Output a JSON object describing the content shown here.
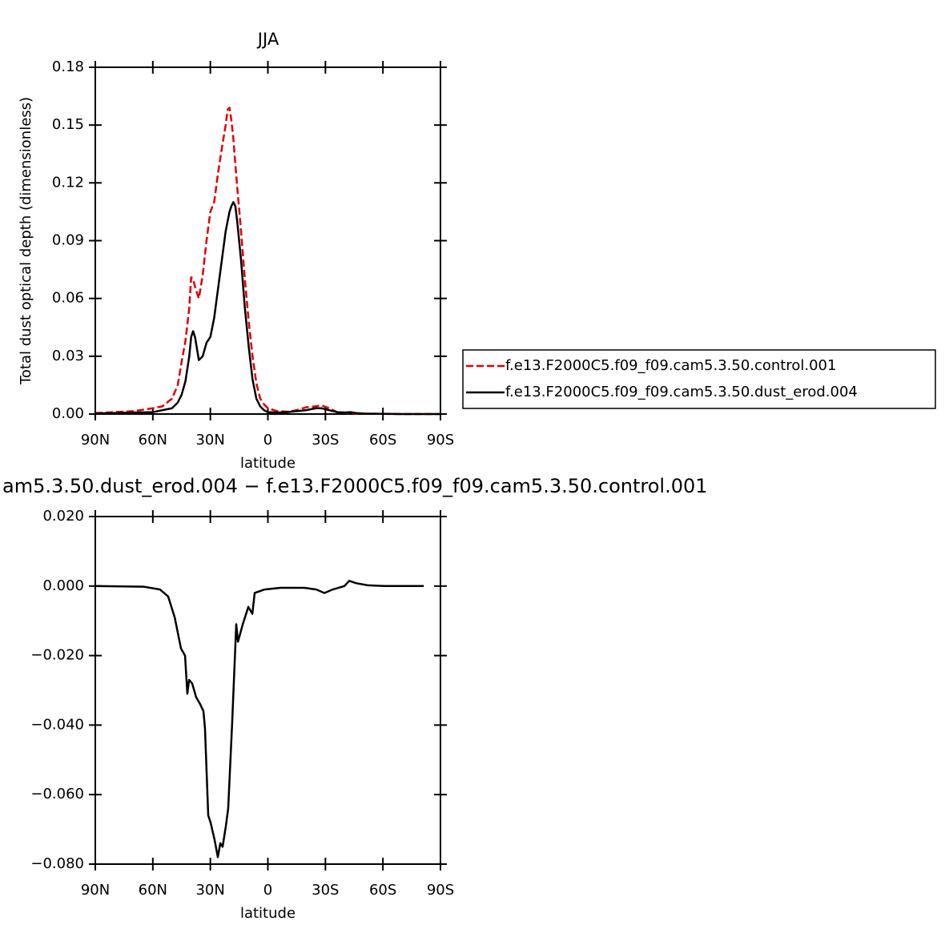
{
  "chart_data": [
    {
      "type": "line",
      "title": "JJA",
      "xlabel": "latitude",
      "ylabel": "Total dust optical depth (dimensionless)",
      "x": [
        90,
        80,
        70,
        60,
        55,
        50,
        47,
        45,
        43,
        41,
        40,
        39,
        38,
        36,
        34,
        32,
        30,
        28,
        26,
        24,
        22,
        21,
        20,
        19,
        18,
        17,
        16,
        14,
        12,
        10,
        8,
        6,
        4,
        2,
        0,
        -5,
        -10,
        -15,
        -20,
        -25,
        -28,
        -32,
        -36,
        -40,
        -43,
        -46,
        -50,
        -60,
        -70,
        -80,
        -90
      ],
      "series": [
        {
          "name": "f.e13.F2000C5.f09_f09.cam5.3.50.control.001",
          "color": "#e00000",
          "dash": true,
          "values": [
            0.0005,
            0.001,
            0.0015,
            0.003,
            0.004,
            0.008,
            0.015,
            0.027,
            0.038,
            0.055,
            0.071,
            0.07,
            0.066,
            0.06,
            0.072,
            0.09,
            0.105,
            0.11,
            0.125,
            0.138,
            0.15,
            0.158,
            0.159,
            0.152,
            0.143,
            0.13,
            0.118,
            0.095,
            0.07,
            0.048,
            0.03,
            0.016,
            0.008,
            0.005,
            0.003,
            0.0015,
            0.0012,
            0.002,
            0.0035,
            0.004,
            0.0045,
            0.003,
            0.001,
            0.0008,
            0.0005,
            0.0003,
            0.0002,
            0.0001,
            0,
            0,
            0
          ]
        },
        {
          "name": "f.e13.F2000C5.f09_f09.cam5.3.50.dust_erod.004",
          "color": "#000000",
          "dash": false,
          "values": [
            0.0003,
            0.0005,
            0.0008,
            0.001,
            0.002,
            0.003,
            0.006,
            0.01,
            0.017,
            0.03,
            0.04,
            0.043,
            0.04,
            0.028,
            0.03,
            0.037,
            0.04,
            0.05,
            0.065,
            0.08,
            0.095,
            0.1,
            0.105,
            0.108,
            0.11,
            0.108,
            0.1,
            0.08,
            0.055,
            0.035,
            0.018,
            0.008,
            0.004,
            0.002,
            0.001,
            0.0008,
            0.001,
            0.0015,
            0.002,
            0.003,
            0.003,
            0.002,
            0.001,
            0.0008,
            0.001,
            0.0005,
            0.0002,
            0.0001,
            0,
            0,
            0
          ]
        }
      ],
      "xlim": [
        90,
        -90
      ],
      "xticks": [
        {
          "value": 90,
          "label": "90N"
        },
        {
          "value": 60,
          "label": "60N"
        },
        {
          "value": 30,
          "label": "30N"
        },
        0,
        {
          "value": -30,
          "label": "30S"
        },
        {
          "value": -60,
          "label": "60S"
        },
        {
          "value": -90,
          "label": "90S"
        }
      ],
      "ylim": [
        0,
        0.18
      ],
      "yticks": [
        {
          "value": 0,
          "label": "0.00"
        },
        0.03,
        0.06,
        0.09,
        0.12,
        0.15,
        0.18
      ],
      "legend": "right"
    },
    {
      "type": "line",
      "title": "am5.3.50.dust_erod.004 − f.e13.F2000C5.f09_f09.cam5.3.50.control.001",
      "xlabel": "latitude",
      "x": [
        90,
        64.5,
        56.2,
        52,
        48.6,
        45.3,
        43.2,
        42,
        41.1,
        39.5,
        37.4,
        35.3,
        33.6,
        32.8,
        31.1,
        29.9,
        27.8,
        26.1,
        24.8,
        23.6,
        21.9,
        20.7,
        18.6,
        16.5,
        15.6,
        13.1,
        10.2,
        8.1,
        6.9,
        1.9,
        -6.5,
        -19,
        -25.3,
        -29.5,
        -33.7,
        -39.9,
        -42.4,
        -46.2,
        -52.4,
        -60.8,
        -81.3
      ],
      "series": [
        {
          "color": "#000000",
          "dash": false,
          "values": [
            0,
            -0.0002,
            -0.001,
            -0.003,
            -0.009,
            -0.018,
            -0.02,
            -0.031,
            -0.027,
            -0.028,
            -0.032,
            -0.034,
            -0.036,
            -0.041,
            -0.066,
            -0.068,
            -0.073,
            -0.078,
            -0.074,
            -0.075,
            -0.069,
            -0.064,
            -0.039,
            -0.011,
            -0.016,
            -0.011,
            -0.006,
            -0.008,
            -0.002,
            -0.001,
            -0.0005,
            -0.0005,
            -0.001,
            -0.002,
            -0.001,
            0,
            0.0015,
            0.0008,
            0.0002,
            0,
            0
          ]
        }
      ],
      "xlim": [
        90,
        -90
      ],
      "xticks": [
        {
          "value": 90,
          "label": "90N"
        },
        {
          "value": 60,
          "label": "60N"
        },
        {
          "value": 30,
          "label": "30N"
        },
        0,
        {
          "value": -30,
          "label": "30S"
        },
        {
          "value": -60,
          "label": "60S"
        },
        {
          "value": -90,
          "label": "90S"
        }
      ],
      "ylim": [
        -0.08,
        0.02
      ],
      "yticks": [
        {
          "value": -0.08,
          "label": "−0.080"
        },
        {
          "value": -0.06,
          "label": "−0.060"
        },
        {
          "value": -0.04,
          "label": "−0.040"
        },
        {
          "value": -0.02,
          "label": "−0.020"
        },
        {
          "value": 0,
          "label": "0.000"
        },
        {
          "value": 0.02,
          "label": "0.020"
        }
      ]
    }
  ]
}
